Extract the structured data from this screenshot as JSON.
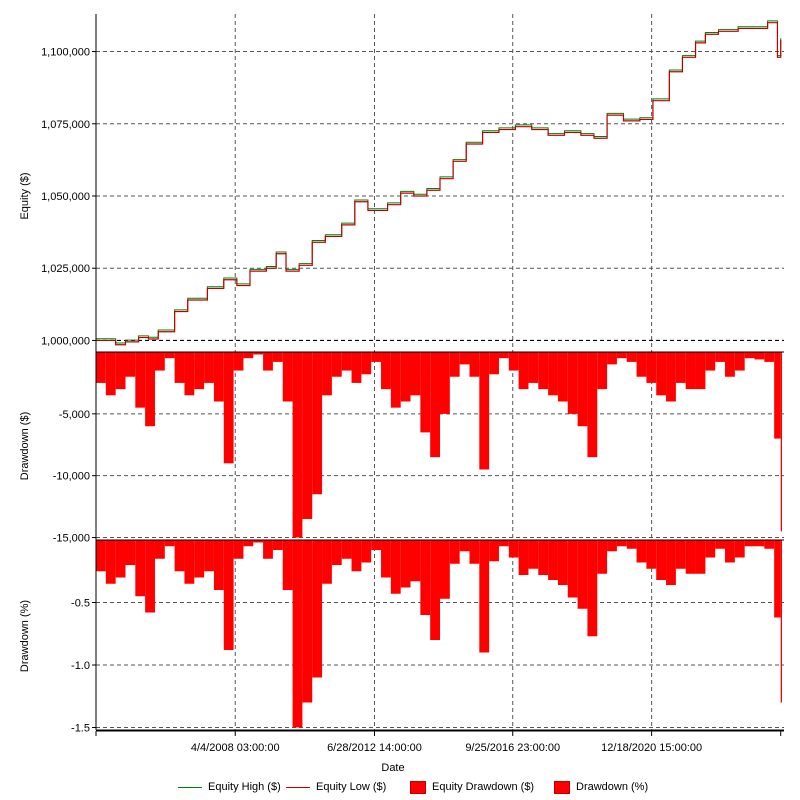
{
  "chart_data": [
    {
      "type": "line",
      "ylabel": "Equity ($)",
      "ylim": [
        996000,
        1113000
      ],
      "y_ticks": [
        {
          "value": 1000000,
          "label": "1,000,000"
        },
        {
          "value": 1025000,
          "label": "1,025,000"
        },
        {
          "value": 1050000,
          "label": "1,050,000"
        },
        {
          "value": 1075000,
          "label": "1,075,000"
        },
        {
          "value": 1100000,
          "label": "1,100,000"
        }
      ],
      "baseline": 1000000,
      "series": [
        {
          "name": "Equity High ($)",
          "color": "#008000"
        },
        {
          "name": "Equity Low ($)",
          "color": "#c00000"
        }
      ],
      "x": [
        2004.0,
        2004.6,
        2004.9,
        2005.3,
        2005.6,
        2005.9,
        2006.4,
        2006.8,
        2007.4,
        2007.9,
        2008.3,
        2008.7,
        2009.2,
        2009.5,
        2009.8,
        2010.2,
        2010.6,
        2011.0,
        2011.5,
        2011.9,
        2012.3,
        2012.9,
        2013.3,
        2013.7,
        2014.1,
        2014.5,
        2014.9,
        2015.3,
        2015.8,
        2016.3,
        2016.8,
        2017.3,
        2017.8,
        2018.3,
        2018.8,
        2019.2,
        2019.6,
        2020.1,
        2020.6,
        2021.0,
        2021.5,
        2021.9,
        2022.3,
        2022.6,
        2023.0,
        2023.6,
        2024.2,
        2024.5,
        2024.8,
        2024.9
      ],
      "values": [
        1000000,
        998500,
        999500,
        1001000,
        1000500,
        1003000,
        1010000,
        1014000,
        1018000,
        1021000,
        1019000,
        1024000,
        1025000,
        1030000,
        1024000,
        1026000,
        1034000,
        1036000,
        1040000,
        1048000,
        1045000,
        1047000,
        1051000,
        1050000,
        1052000,
        1056000,
        1062000,
        1068000,
        1072000,
        1073000,
        1074000,
        1073000,
        1071000,
        1072000,
        1071000,
        1070000,
        1078000,
        1076000,
        1076500,
        1083000,
        1093000,
        1098000,
        1103000,
        1106000,
        1107000,
        1108000,
        1108000,
        1110000,
        1098000,
        1104000
      ]
    },
    {
      "type": "area",
      "ylabel": "Drawdown ($)",
      "ylim": [
        -15200,
        0
      ],
      "y_ticks": [
        {
          "value": -5000,
          "label": "-5,000"
        },
        {
          "value": -10000,
          "label": "-10,000"
        },
        {
          "value": -15000,
          "label": "-15,000"
        }
      ],
      "series": [
        {
          "name": "Equity Drawdown ($)",
          "color": "#ff0000"
        }
      ],
      "x": [
        2004.0,
        2004.3,
        2004.6,
        2004.9,
        2005.2,
        2005.5,
        2005.8,
        2006.1,
        2006.4,
        2006.7,
        2007.0,
        2007.3,
        2007.6,
        2007.9,
        2008.2,
        2008.5,
        2008.8,
        2009.1,
        2009.4,
        2009.7,
        2010.0,
        2010.3,
        2010.6,
        2010.9,
        2011.2,
        2011.5,
        2011.8,
        2012.1,
        2012.4,
        2012.7,
        2013.0,
        2013.3,
        2013.6,
        2013.9,
        2014.2,
        2014.5,
        2014.8,
        2015.1,
        2015.4,
        2015.7,
        2016.0,
        2016.3,
        2016.6,
        2016.9,
        2017.2,
        2017.5,
        2017.8,
        2018.1,
        2018.4,
        2018.7,
        2019.0,
        2019.3,
        2019.6,
        2019.9,
        2020.2,
        2020.5,
        2020.8,
        2021.1,
        2021.4,
        2021.7,
        2022.0,
        2022.3,
        2022.6,
        2022.9,
        2023.2,
        2023.5,
        2023.8,
        2024.1,
        2024.4,
        2024.7,
        2024.9
      ],
      "values": [
        -2500,
        -3500,
        -3000,
        -2000,
        -4500,
        -6000,
        -1500,
        -500,
        -2500,
        -3500,
        -3000,
        -2500,
        -4000,
        -9000,
        -1500,
        -500,
        -200,
        -1500,
        -800,
        -4000,
        -15000,
        -13500,
        -11500,
        -3500,
        -2000,
        -1500,
        -2500,
        -1800,
        -800,
        -3000,
        -4500,
        -4000,
        -3500,
        -6500,
        -8500,
        -5000,
        -2000,
        -1000,
        -2000,
        -9500,
        -1800,
        -500,
        -1500,
        -3000,
        -2500,
        -3000,
        -3500,
        -4000,
        -5000,
        -6000,
        -8500,
        -3000,
        -1000,
        -500,
        -800,
        -2000,
        -2500,
        -3500,
        -4000,
        -2500,
        -3000,
        -3000,
        -1500,
        -800,
        -2000,
        -1500,
        -500,
        -600,
        -800,
        -7000,
        -14500
      ]
    },
    {
      "type": "area",
      "ylabel": "Drawdown (%)",
      "ylim": [
        -1.52,
        0
      ],
      "y_ticks": [
        {
          "value": -0.5,
          "label": "-0.5"
        },
        {
          "value": -1.0,
          "label": "-1.0"
        },
        {
          "value": -1.5,
          "label": "-1.5"
        }
      ],
      "series": [
        {
          "name": "Drawdown (%)",
          "color": "#ff0000"
        }
      ],
      "x": [
        2004.0,
        2004.3,
        2004.6,
        2004.9,
        2005.2,
        2005.5,
        2005.8,
        2006.1,
        2006.4,
        2006.7,
        2007.0,
        2007.3,
        2007.6,
        2007.9,
        2008.2,
        2008.5,
        2008.8,
        2009.1,
        2009.4,
        2009.7,
        2010.0,
        2010.3,
        2010.6,
        2010.9,
        2011.2,
        2011.5,
        2011.8,
        2012.1,
        2012.4,
        2012.7,
        2013.0,
        2013.3,
        2013.6,
        2013.9,
        2014.2,
        2014.5,
        2014.8,
        2015.1,
        2015.4,
        2015.7,
        2016.0,
        2016.3,
        2016.6,
        2016.9,
        2017.2,
        2017.5,
        2017.8,
        2018.1,
        2018.4,
        2018.7,
        2019.0,
        2019.3,
        2019.6,
        2019.9,
        2020.2,
        2020.5,
        2020.8,
        2021.1,
        2021.4,
        2021.7,
        2022.0,
        2022.3,
        2022.6,
        2022.9,
        2023.2,
        2023.5,
        2023.8,
        2024.1,
        2024.4,
        2024.7,
        2024.9
      ],
      "values": [
        -0.25,
        -0.35,
        -0.3,
        -0.2,
        -0.45,
        -0.58,
        -0.15,
        -0.05,
        -0.25,
        -0.35,
        -0.3,
        -0.25,
        -0.4,
        -0.88,
        -0.15,
        -0.05,
        -0.02,
        -0.15,
        -0.08,
        -0.4,
        -1.5,
        -1.3,
        -1.1,
        -0.35,
        -0.2,
        -0.15,
        -0.25,
        -0.18,
        -0.08,
        -0.3,
        -0.43,
        -0.38,
        -0.33,
        -0.6,
        -0.8,
        -0.47,
        -0.19,
        -0.09,
        -0.19,
        -0.9,
        -0.17,
        -0.05,
        -0.14,
        -0.28,
        -0.23,
        -0.28,
        -0.32,
        -0.36,
        -0.46,
        -0.55,
        -0.77,
        -0.27,
        -0.09,
        -0.05,
        -0.07,
        -0.18,
        -0.23,
        -0.32,
        -0.36,
        -0.23,
        -0.27,
        -0.27,
        -0.14,
        -0.07,
        -0.18,
        -0.14,
        -0.05,
        -0.05,
        -0.07,
        -0.62,
        -1.3
      ]
    }
  ],
  "x_axis": {
    "title": "Date",
    "xlim": [
      2004.0,
      2025.0
    ],
    "ticks": [
      {
        "value": 2008.25,
        "label": "4/4/2008 03:00:00"
      },
      {
        "value": 2012.5,
        "label": "6/28/2012 14:00:00"
      },
      {
        "value": 2016.72,
        "label": "9/25/2016 23:00:00"
      },
      {
        "value": 2020.96,
        "label": "12/18/2020 15:00:00"
      }
    ]
  },
  "legend": {
    "position": "bottom",
    "items": [
      {
        "label": "Equity High ($)",
        "color": "#008000",
        "kind": "line"
      },
      {
        "label": "Equity Low ($)",
        "color": "#c00000",
        "kind": "line"
      },
      {
        "label": "Equity Drawdown ($)",
        "color": "#ff0000",
        "kind": "box"
      },
      {
        "label": "Drawdown (%)",
        "color": "#ff0000",
        "kind": "box"
      }
    ]
  }
}
